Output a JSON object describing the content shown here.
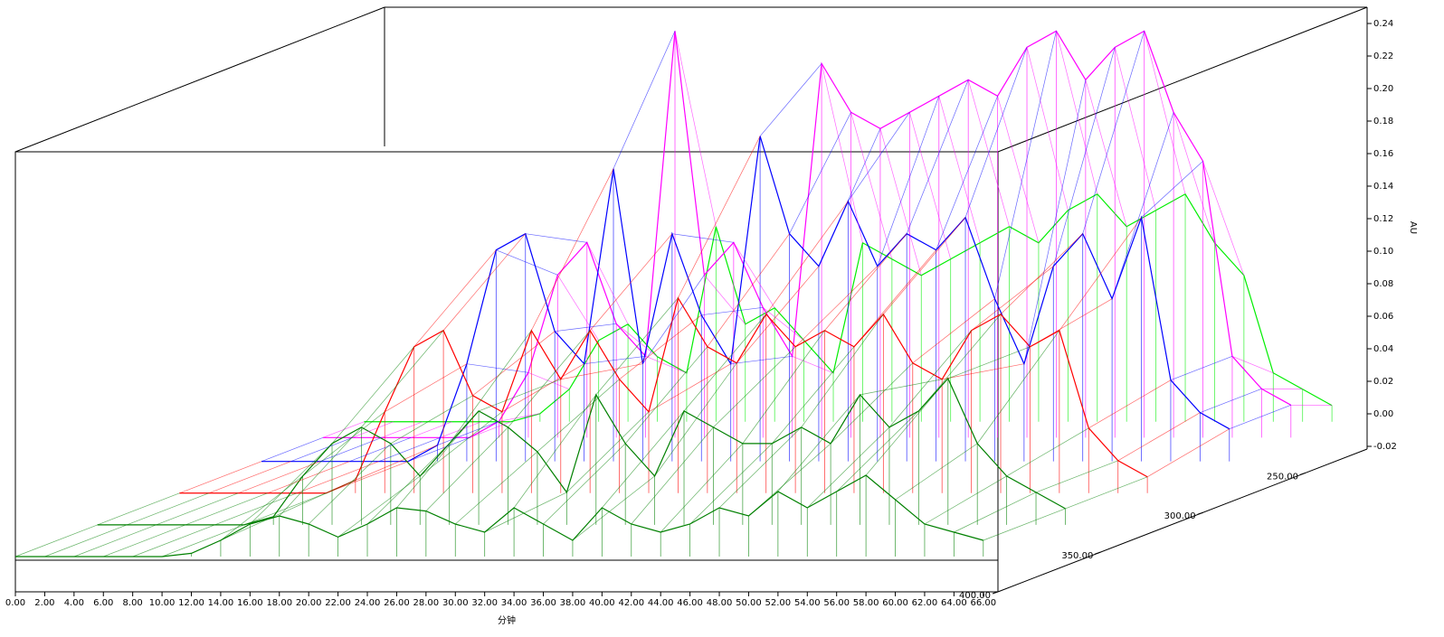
{
  "chart_data": {
    "type": "waterfall3d",
    "x_label": "分钟",
    "y_label": "AU",
    "x": [
      0,
      2,
      4,
      6,
      8,
      10,
      12,
      14,
      16,
      18,
      20,
      22,
      24,
      26,
      28,
      30,
      32,
      34,
      36,
      38,
      40,
      42,
      44,
      46,
      48,
      50,
      52,
      54,
      56,
      58,
      60,
      62,
      64,
      66
    ],
    "series": [
      {
        "z": 230,
        "color": "#00ee00",
        "values": [
          0,
          0,
          0,
          0,
          0,
          0,
          0.005,
          0.02,
          0.05,
          0.06,
          0.04,
          0.03,
          0.12,
          0.06,
          0.07,
          0.05,
          0.03,
          0.11,
          0.1,
          0.09,
          0.1,
          0.11,
          0.12,
          0.11,
          0.13,
          0.14,
          0.12,
          0.13,
          0.14,
          0.11,
          0.09,
          0.03,
          0.02,
          0.01
        ]
      },
      {
        "z": 250,
        "color": "#ff00ff",
        "values": [
          0,
          0,
          0,
          0,
          0,
          0,
          0.01,
          0.04,
          0.1,
          0.12,
          0.07,
          0.05,
          0.25,
          0.1,
          0.12,
          0.08,
          0.05,
          0.23,
          0.2,
          0.19,
          0.2,
          0.21,
          0.22,
          0.21,
          0.24,
          0.25,
          0.22,
          0.24,
          0.25,
          0.2,
          0.17,
          0.05,
          0.03,
          0.02
        ]
      },
      {
        "z": 280,
        "color": "#0000ff",
        "values": [
          0,
          0,
          0,
          0,
          0,
          0,
          0.01,
          0.06,
          0.13,
          0.14,
          0.08,
          0.06,
          0.18,
          0.06,
          0.14,
          0.09,
          0.06,
          0.2,
          0.14,
          0.12,
          0.16,
          0.12,
          0.14,
          0.13,
          0.15,
          0.1,
          0.06,
          0.12,
          0.14,
          0.1,
          0.15,
          0.05,
          0.03,
          0.02
        ]
      },
      {
        "z": 320,
        "color": "#ff0000",
        "values": [
          0,
          0,
          0,
          0,
          0,
          0,
          0.008,
          0.05,
          0.09,
          0.1,
          0.06,
          0.05,
          0.1,
          0.07,
          0.1,
          0.07,
          0.05,
          0.12,
          0.09,
          0.08,
          0.11,
          0.09,
          0.1,
          0.09,
          0.11,
          0.08,
          0.07,
          0.1,
          0.11,
          0.09,
          0.1,
          0.04,
          0.02,
          0.01
        ]
      },
      {
        "z": 360,
        "color": "#008000",
        "values": [
          0,
          0,
          0,
          0,
          0,
          0,
          0.005,
          0.03,
          0.05,
          0.06,
          0.05,
          0.03,
          0.05,
          0.07,
          0.06,
          0.045,
          0.02,
          0.08,
          0.05,
          0.03,
          0.07,
          0.06,
          0.05,
          0.05,
          0.06,
          0.05,
          0.08,
          0.06,
          0.07,
          0.09,
          0.05,
          0.03,
          0.02,
          0.01
        ]
      },
      {
        "z": 400,
        "color": "#008000",
        "values": [
          0,
          0,
          0,
          0,
          0,
          0,
          0.002,
          0.01,
          0.02,
          0.025,
          0.02,
          0.012,
          0.02,
          0.03,
          0.028,
          0.02,
          0.015,
          0.03,
          0.02,
          0.01,
          0.03,
          0.02,
          0.015,
          0.02,
          0.03,
          0.025,
          0.04,
          0.03,
          0.04,
          0.05,
          0.035,
          0.02,
          0.015,
          0.01
        ]
      }
    ],
    "xlim": [
      0,
      67
    ],
    "ylim": [
      -0.02,
      0.25
    ],
    "zlim": [
      400,
      220
    ],
    "xticks": [
      {
        "value": 0,
        "label": "0.00"
      },
      {
        "value": 2,
        "label": "2.00"
      },
      {
        "value": 4,
        "label": "4.00"
      },
      {
        "value": 6,
        "label": "6.00"
      },
      {
        "value": 8,
        "label": "8.00"
      },
      {
        "value": 10,
        "label": "10.00"
      },
      {
        "value": 12,
        "label": "12.00"
      },
      {
        "value": 14,
        "label": "14.00"
      },
      {
        "value": 16,
        "label": "16.00"
      },
      {
        "value": 18,
        "label": "18.00"
      },
      {
        "value": 20,
        "label": "20.00"
      },
      {
        "value": 22,
        "label": "22.00"
      },
      {
        "value": 24,
        "label": "24.00"
      },
      {
        "value": 26,
        "label": "26.00"
      },
      {
        "value": 28,
        "label": "28.00"
      },
      {
        "value": 30,
        "label": "30.00"
      },
      {
        "value": 32,
        "label": "32.00"
      },
      {
        "value": 34,
        "label": "34.00"
      },
      {
        "value": 36,
        "label": "36.00"
      },
      {
        "value": 38,
        "label": "38.00"
      },
      {
        "value": 40,
        "label": "40.00"
      },
      {
        "value": 42,
        "label": "42.00"
      },
      {
        "value": 44,
        "label": "44.00"
      },
      {
        "value": 46,
        "label": "46.00"
      },
      {
        "value": 48,
        "label": "48.00"
      },
      {
        "value": 50,
        "label": "50.00"
      },
      {
        "value": 52,
        "label": "52.00"
      },
      {
        "value": 54,
        "label": "54.00"
      },
      {
        "value": 56,
        "label": "56.00"
      },
      {
        "value": 58,
        "label": "58.00"
      },
      {
        "value": 60,
        "label": "60.00"
      },
      {
        "value": 62,
        "label": "62.00"
      },
      {
        "value": 64,
        "label": "64.00"
      },
      {
        "value": 66,
        "label": "66.00"
      }
    ],
    "yticks": [
      {
        "value": -0.02,
        "label": "-0.02"
      },
      {
        "value": 0,
        "label": "0.00"
      },
      {
        "value": 0.02,
        "label": "0.02"
      },
      {
        "value": 0.04,
        "label": "0.04"
      },
      {
        "value": 0.06,
        "label": "0.06"
      },
      {
        "value": 0.08,
        "label": "0.08"
      },
      {
        "value": 0.1,
        "label": "0.10"
      },
      {
        "value": 0.12,
        "label": "0.12"
      },
      {
        "value": 0.14,
        "label": "0.14"
      },
      {
        "value": 0.16,
        "label": "0.16"
      },
      {
        "value": 0.18,
        "label": "0.18"
      },
      {
        "value": 0.2,
        "label": "0.20"
      },
      {
        "value": 0.22,
        "label": "0.22"
      },
      {
        "value": 0.24,
        "label": "0.24"
      }
    ],
    "zticks": [
      {
        "value": 250,
        "label": "250.00"
      },
      {
        "value": 300,
        "label": "300.00"
      },
      {
        "value": 350,
        "label": "350.00"
      },
      {
        "value": 400,
        "label": "400.00"
      }
    ]
  }
}
